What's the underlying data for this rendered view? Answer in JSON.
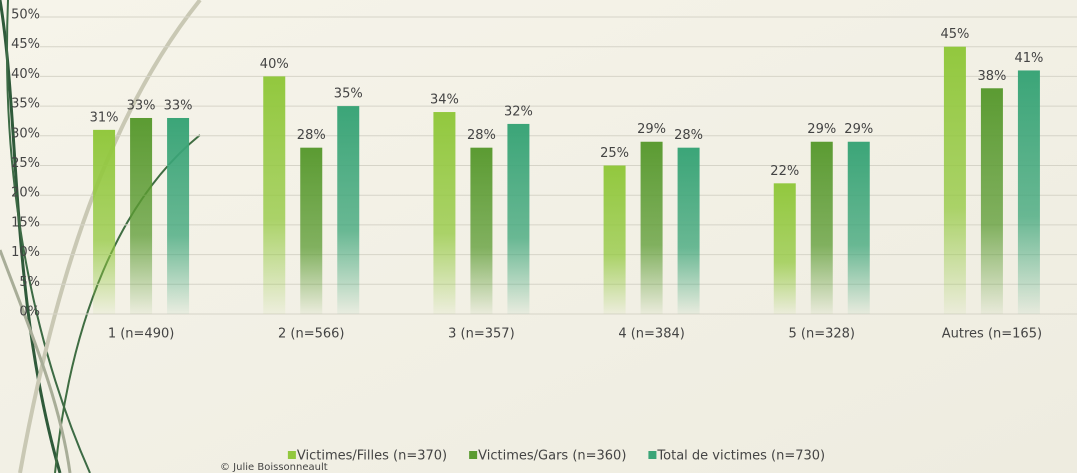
{
  "chart_data": {
    "type": "bar",
    "categories": [
      "1 (n=490)",
      "2 (n=566)",
      "3 (n=357)",
      "4 (n=384)",
      "5 (n=328)",
      "Autres (n=165)"
    ],
    "series": [
      {
        "name": "Victimes/Filles (n=370)",
        "color": "#92c83e",
        "values": [
          31,
          40,
          34,
          25,
          22,
          45
        ],
        "value_labels": [
          "31%",
          "40%",
          "34%",
          "25%",
          "22%",
          "45%"
        ]
      },
      {
        "name": "Victimes/Gars (n=360)",
        "color": "#5b9b32",
        "values": [
          33,
          28,
          28,
          29,
          29,
          38
        ],
        "value_labels": [
          "33%",
          "28%",
          "28%",
          "29%",
          "29%",
          "38%"
        ]
      },
      {
        "name": "Total de victimes (n=730)",
        "color": "#3ba578",
        "values": [
          33,
          35,
          32,
          28,
          29,
          41
        ],
        "value_labels": [
          "33%",
          "35%",
          "32%",
          "28%",
          "29%",
          "41%"
        ]
      }
    ],
    "ylim": [
      0,
      50
    ],
    "yticks": [
      {
        "value": 0,
        "label": "0%"
      },
      {
        "value": 5,
        "label": "5%"
      },
      {
        "value": 10,
        "label": "10%"
      },
      {
        "value": 15,
        "label": "15%"
      },
      {
        "value": 20,
        "label": "20%"
      },
      {
        "value": 25,
        "label": "25%"
      },
      {
        "value": 30,
        "label": "30%"
      },
      {
        "value": 35,
        "label": "35%"
      },
      {
        "value": 40,
        "label": "40%"
      },
      {
        "value": 45,
        "label": "45%"
      },
      {
        "value": 50,
        "label": "50%"
      }
    ],
    "grid": true,
    "legend": "bottom",
    "credit": "© Julie Boissonneault"
  }
}
